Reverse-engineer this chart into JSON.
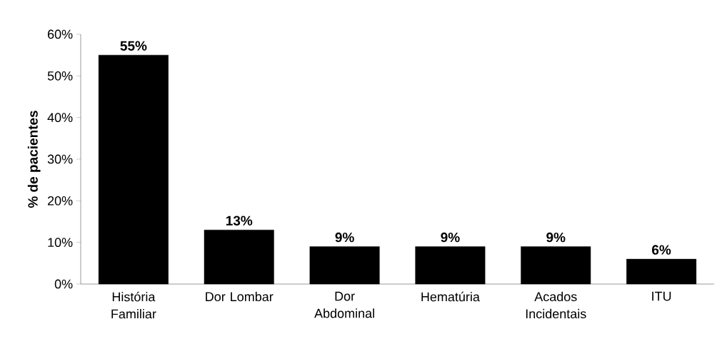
{
  "chart_data": {
    "type": "bar",
    "ylabel": "% de pacientes",
    "categories": [
      "História Familiar",
      "Dor Lombar",
      "Dor Abdominal",
      "Hematúria",
      "Acados Incidentais",
      "ITU"
    ],
    "values": [
      55,
      13,
      9,
      9,
      9,
      6
    ],
    "value_labels": [
      "55%",
      "13%",
      "9%",
      "9%",
      "9%",
      "6%"
    ],
    "color": "#000000",
    "ylim": [
      0,
      60
    ],
    "yticks": [
      {
        "value": 0,
        "label": "0%"
      },
      {
        "value": 10,
        "label": "10%"
      },
      {
        "value": 20,
        "label": "20%"
      },
      {
        "value": 30,
        "label": "30%"
      },
      {
        "value": 40,
        "label": "40%"
      },
      {
        "value": 50,
        "label": "50%"
      },
      {
        "value": 60,
        "label": "60%"
      }
    ],
    "grid": false
  }
}
